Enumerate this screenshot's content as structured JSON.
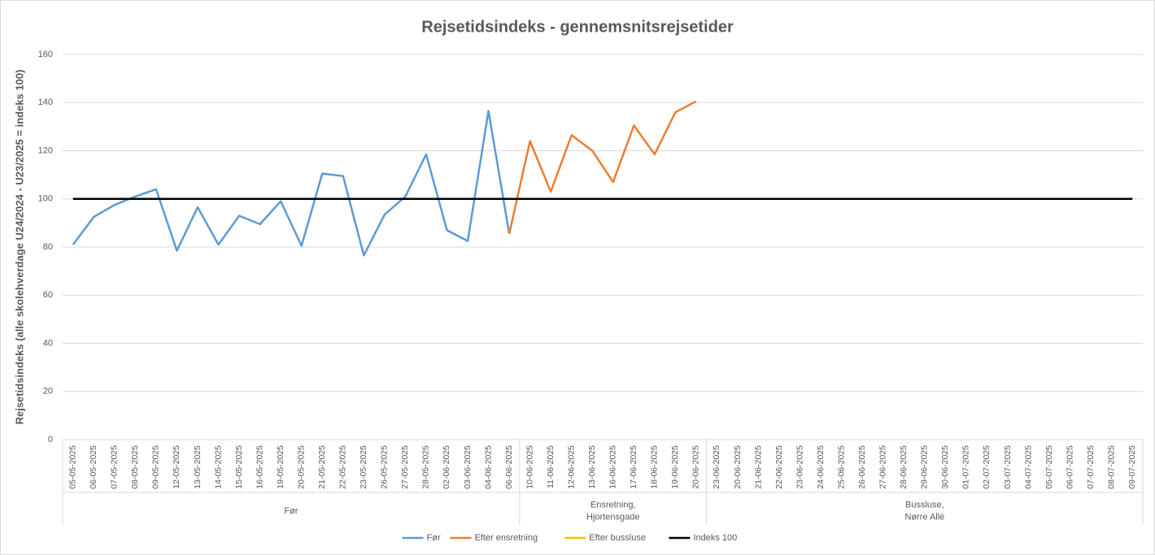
{
  "chart_data": {
    "type": "line",
    "title": "Rejsetidsindeks - gennemsnitsrejsetider",
    "y_label": "Rejsetidsindeks (alle skolehverdage U24/2024 - U23/2025 = indeks 100)",
    "groups": [
      {
        "label": [
          "Før"
        ],
        "categories": [
          "05-05-2025",
          "06-05-2025",
          "07-05-2025",
          "08-05-2025",
          "09-05-2025",
          "12-05-2025",
          "13-05-2025",
          "14-05-2025",
          "15-05-2025",
          "16-05-2025",
          "19-05-2025",
          "20-05-2025",
          "21-05-2025",
          "22-05-2025",
          "23-05-2025",
          "26-05-2025",
          "27-05-2025",
          "28-05-2025",
          "02-06-2025",
          "03-06-2025",
          "04-06-2025",
          "06-06-2025"
        ]
      },
      {
        "label": [
          "Ensretning,",
          "Hjortensgade"
        ],
        "categories": [
          "10-06-2025",
          "11-06-2025",
          "12-06-2025",
          "13-06-2025",
          "16-06-2025",
          "17-06-2025",
          "18-06-2025",
          "19-06-2025",
          "20-06-2025"
        ]
      },
      {
        "label": [
          "Bussluse,",
          "Nørre Allé"
        ],
        "categories": [
          "23-06-2025",
          "20-06-2025",
          "21-06-2025",
          "22-06-2025",
          "23-06-2025",
          "24-06-2025",
          "25-06-2025",
          "26-06-2025",
          "27-06-2025",
          "28-06-2025",
          "29-06-2025",
          "30-06-2025",
          "01-07-2025",
          "02-07-2025",
          "03-07-2025",
          "04-07-2025",
          "05-07-2025",
          "06-07-2025",
          "07-07-2025",
          "08-07-2025",
          "09-07-2025"
        ]
      }
    ],
    "series": [
      {
        "name": "Før",
        "color": "#5b9bd5",
        "values": [
          81,
          92.5,
          97.5,
          101,
          104,
          78.5,
          96.5,
          81,
          93,
          89.5,
          99,
          80.5,
          110.5,
          109.5,
          76.5,
          93.5,
          101,
          118.5,
          87,
          82.5,
          136.5,
          85.5,
          null,
          null,
          null,
          null,
          null,
          null,
          null,
          null,
          null,
          null,
          null,
          null,
          null,
          null,
          null,
          null,
          null,
          null,
          null,
          null,
          null,
          null,
          null,
          null,
          null,
          null,
          null,
          null,
          null,
          null
        ]
      },
      {
        "name": "Efter ensretning",
        "color": "#ed7d31",
        "values": [
          null,
          null,
          null,
          null,
          null,
          null,
          null,
          null,
          null,
          null,
          null,
          null,
          null,
          null,
          null,
          null,
          null,
          null,
          null,
          null,
          null,
          85.5,
          124,
          103,
          126.5,
          120,
          107,
          130.5,
          118.5,
          136,
          140.5,
          null,
          null,
          null,
          null,
          null,
          null,
          null,
          null,
          null,
          null,
          null,
          null,
          null,
          null,
          null,
          null,
          null,
          null,
          null,
          null,
          null
        ]
      },
      {
        "name": "Efter bussluse",
        "color": "#ffc000",
        "values": [
          null,
          null,
          null,
          null,
          null,
          null,
          null,
          null,
          null,
          null,
          null,
          null,
          null,
          null,
          null,
          null,
          null,
          null,
          null,
          null,
          null,
          null,
          null,
          null,
          null,
          null,
          null,
          null,
          null,
          null,
          null,
          null,
          null,
          null,
          null,
          null,
          null,
          null,
          null,
          null,
          null,
          null,
          null,
          null,
          null,
          null,
          null,
          null,
          null,
          null,
          null,
          null
        ]
      },
      {
        "name": "Indeks 100",
        "color": "#000000",
        "values": [
          100,
          100,
          100,
          100,
          100,
          100,
          100,
          100,
          100,
          100,
          100,
          100,
          100,
          100,
          100,
          100,
          100,
          100,
          100,
          100,
          100,
          100,
          100,
          100,
          100,
          100,
          100,
          100,
          100,
          100,
          100,
          100,
          100,
          100,
          100,
          100,
          100,
          100,
          100,
          100,
          100,
          100,
          100,
          100,
          100,
          100,
          100,
          100,
          100,
          100,
          100,
          100
        ]
      }
    ],
    "ylim": [
      0,
      160
    ],
    "yticks": [
      0,
      20,
      40,
      60,
      80,
      100,
      120,
      140,
      160
    ],
    "grid": true,
    "legend": "bottom"
  }
}
